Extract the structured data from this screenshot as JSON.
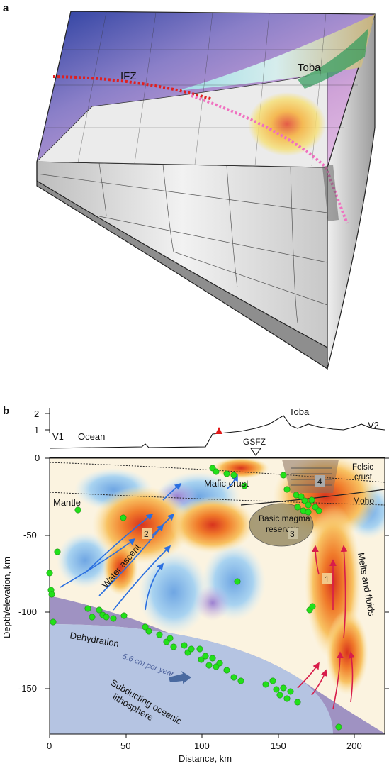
{
  "panel_a": {
    "panel_label": "a",
    "labels": {
      "ifz": "IFZ",
      "toba": "Toba"
    }
  },
  "panel_b": {
    "panel_label": "b",
    "elevation_ticks": [
      "2",
      "1"
    ],
    "profile_labels": {
      "v1": "V1",
      "ocean": "Ocean",
      "toba": "Toba",
      "v2": "V2",
      "gsfz": "GSFZ"
    },
    "region_labels": {
      "felsic": "Felsic",
      "crust": "crust",
      "mafic_crust": "Mafic crust",
      "mantle": "Mantle",
      "moho": "Moho",
      "basic_magma": "Basic magma",
      "reservoir": "reservoir",
      "water_ascent": "Water ascent",
      "melts_and_fluids": "Melts and fluids",
      "dehydration": "Dehydration",
      "rate": "5.6 cm per year",
      "subducting_1": "Subducting oceanic",
      "subducting_2": "lithosphere"
    },
    "zone_numbers": [
      "1",
      "2",
      "3",
      "4"
    ],
    "y_ticks": [
      "0",
      "-50",
      "-100",
      "-150"
    ],
    "x_ticks": [
      "0",
      "50",
      "100",
      "150",
      "200"
    ],
    "xlabel": "Distance, km",
    "ylabel": "Depth/elevation, km",
    "colors": {
      "slab": "#9a8cc0",
      "ocean_lith": "#b5c4e2",
      "seismicity": "#22e01a",
      "fluid_arrow": "#2a6fe0",
      "melt_arrow": "#d81c4a"
    }
  }
}
